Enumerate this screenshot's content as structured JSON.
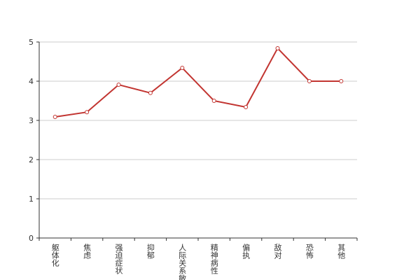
{
  "chart_data": {
    "type": "line",
    "categories": [
      "躯体化",
      "焦虑",
      "强迫症状",
      "抑郁",
      "人际关系敏感",
      "精神病性",
      "偏执",
      "敌对",
      "恐怖",
      "其他"
    ],
    "values": [
      3.09,
      3.21,
      3.91,
      3.7,
      4.34,
      3.5,
      3.34,
      4.84,
      4.0,
      4.0
    ],
    "color": "#c23531",
    "ylim": [
      0,
      5
    ],
    "yticks": [
      0,
      1,
      2,
      3,
      4,
      5
    ],
    "grid": true
  }
}
